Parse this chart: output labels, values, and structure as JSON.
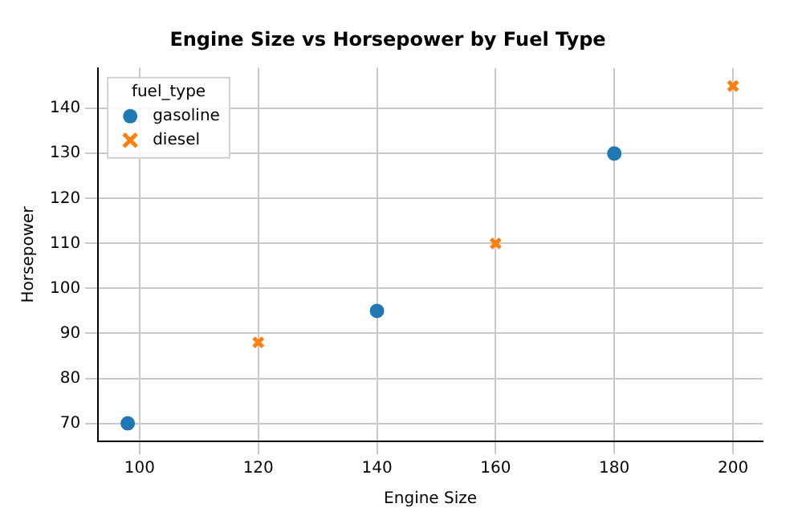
{
  "chart_data": {
    "type": "scatter",
    "title": "Engine Size vs Horsepower by Fuel Type",
    "xlabel": "Engine Size",
    "ylabel": "Horsepower",
    "legend_title": "fuel_type",
    "legend": "top left",
    "grid": true,
    "xlim": [
      93,
      205
    ],
    "xticks": [
      100,
      120,
      140,
      160,
      180,
      200
    ],
    "ylim": [
      66,
      149
    ],
    "yticks": [
      70,
      80,
      90,
      100,
      110,
      120,
      130,
      140
    ],
    "series": [
      {
        "name": "gasoline",
        "color": "#1f77b4",
        "marker": "circle",
        "x": [
          98,
          140,
          180
        ],
        "values": [
          70,
          95,
          130
        ]
      },
      {
        "name": "diesel",
        "color": "#ff7f0e",
        "marker": "cross",
        "x": [
          120,
          160,
          200
        ],
        "values": [
          88,
          110,
          145
        ]
      }
    ]
  }
}
